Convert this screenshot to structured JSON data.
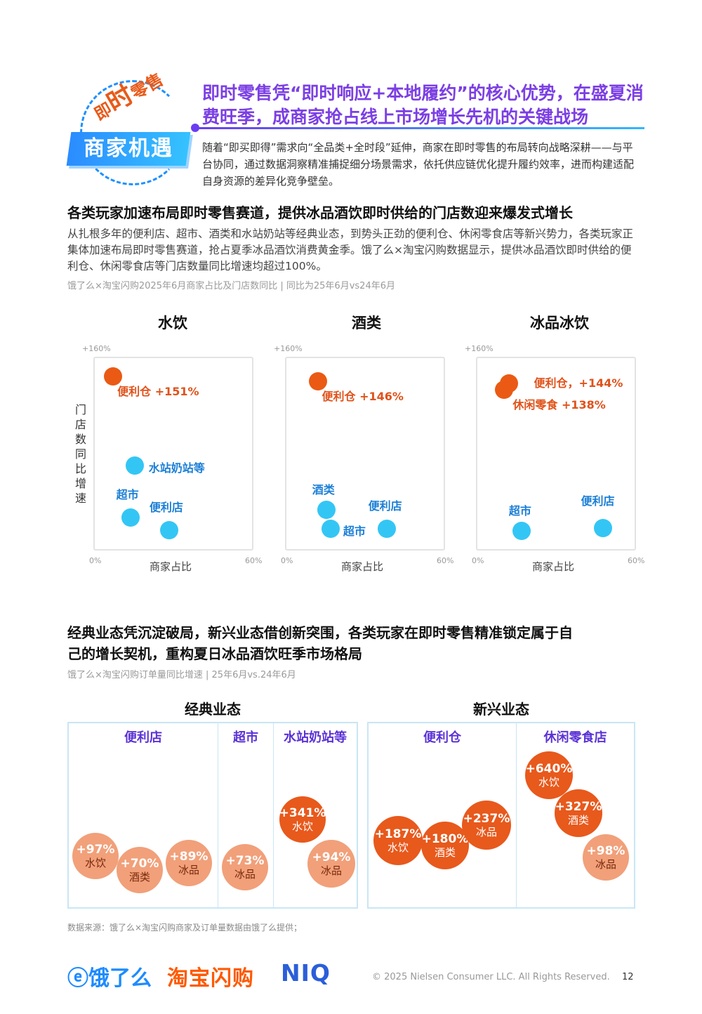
{
  "badge": {
    "top_small1": "即",
    "top_big": "时",
    "top_small2": "零售",
    "tag": "商家机遇"
  },
  "headline": "即时零售凭“即时响应+本地履约”的核心优势，在盛夏消费旺季，成商家抢占线上市场增长先机的关键战场",
  "intro": "随着“即买即得”需求向“全品类+全时段”延伸，商家在即时零售的布局转向战略深耕——与平台协同，通过数据洞察精准捕捉细分场景需求，依托供应链优化提升履约效率，进而构建适配自身资源的差异化竞争壁垒。",
  "section1": {
    "title": "各类玩家加速布局即时零售赛道，提供冰品酒饮即时供给的门店数迎来爆发式增长",
    "body": "从扎根多年的便利店、超市、酒类和水站奶站等经典业态，到势头正劲的便利仓、休闲零食店等新兴势力，各类玩家正集体加速布局即时零售赛道，抢占夏季冰品酒饮消费黄金季。饿了么×淘宝闪购数据显示，提供冰品酒饮即时供给的便利仓、休闲零食店等门店数量同比增速均超过100%。",
    "note": "饿了么×淘宝闪购2025年6月商家占比及门店数同比 | 同比为25年6月vs24年6月"
  },
  "section2": {
    "title_line1": "经典业态凭沉淀破局，新兴业态借创新突围，各类玩家在即时零售精准锁定属于自",
    "title_line2": "己的增长契机，重构夏日冰品酒饮旺季市场格局",
    "note": "饿了么×淘宝闪购订单量同比增速 | 25年6月vs.24年6月",
    "group_classic": "经典业态",
    "group_new": "新兴业态"
  },
  "axis": {
    "ylabel": "门店数同比增速",
    "xlabel": "商家占比",
    "y_max_label": "+160%",
    "x_min_label": "0%",
    "x_max_label": "60%"
  },
  "chart_data": [
    {
      "type": "scatter",
      "title": "水饮",
      "xlabel": "商家占比",
      "ylabel": "门店数同比增速",
      "xlim": [
        0,
        60
      ],
      "ylim": [
        0,
        160
      ],
      "points": [
        {
          "label": "便利仓 +151%",
          "x": 1,
          "y": 151,
          "color": "#ea5a14",
          "group": "orange"
        },
        {
          "label": "水站奶站等",
          "x": 6,
          "y": 67,
          "color": "#33c6f5",
          "group": "blue"
        },
        {
          "label": "超市",
          "x": 5,
          "y": 18,
          "color": "#33c6f5",
          "group": "blue"
        },
        {
          "label": "便利店",
          "x": 14,
          "y": 6,
          "color": "#33c6f5",
          "group": "blue"
        }
      ]
    },
    {
      "type": "scatter",
      "title": "酒类",
      "xlabel": "商家占比",
      "ylabel": "门店数同比增速",
      "xlim": [
        0,
        60
      ],
      "ylim": [
        0,
        160
      ],
      "points": [
        {
          "label": "便利仓 +146%",
          "x": 4,
          "y": 146,
          "color": "#ea5a14",
          "group": "orange"
        },
        {
          "label": "酒类",
          "x": 6,
          "y": 25,
          "color": "#33c6f5",
          "group": "blue"
        },
        {
          "label": "超市",
          "x": 7,
          "y": 7,
          "color": "#33c6f5",
          "group": "blue"
        },
        {
          "label": "便利店",
          "x": 20,
          "y": 7,
          "color": "#33c6f5",
          "group": "blue"
        }
      ]
    },
    {
      "type": "scatter",
      "title": "冰品冰饮",
      "xlabel": "商家占比",
      "ylabel": "门店数同比增速",
      "xlim": [
        0,
        60
      ],
      "ylim": [
        0,
        160
      ],
      "points": [
        {
          "label": "便利仓，+144%",
          "x": 4,
          "y": 144,
          "color": "#ea5a14",
          "group": "orange"
        },
        {
          "label": "休闲零食 +138%",
          "x": 3,
          "y": 138,
          "color": "#ea5a14",
          "group": "orange"
        },
        {
          "label": "超市",
          "x": 7,
          "y": 5,
          "color": "#33c6f5",
          "group": "blue"
        },
        {
          "label": "便利店",
          "x": 26,
          "y": 8,
          "color": "#33c6f5",
          "group": "blue"
        }
      ]
    }
  ],
  "bubbles": {
    "classic": [
      {
        "name": "便利店",
        "items": [
          {
            "value": "+97%",
            "cat": "水饮",
            "tone": "light"
          },
          {
            "value": "+70%",
            "cat": "酒类",
            "tone": "light"
          },
          {
            "value": "+89%",
            "cat": "冰品",
            "tone": "light"
          }
        ]
      },
      {
        "name": "超市",
        "items": [
          {
            "value": "+73%",
            "cat": "冰品",
            "tone": "light"
          }
        ]
      },
      {
        "name": "水站奶站等",
        "items": [
          {
            "value": "+341%",
            "cat": "水饮",
            "tone": "dark"
          },
          {
            "value": "+94%",
            "cat": "冰品",
            "tone": "light"
          }
        ]
      }
    ],
    "new": [
      {
        "name": "便利仓",
        "items": [
          {
            "value": "+187%",
            "cat": "水饮",
            "tone": "dark"
          },
          {
            "value": "+180%",
            "cat": "酒类",
            "tone": "dark"
          },
          {
            "value": "+237%",
            "cat": "冰品",
            "tone": "dark"
          }
        ]
      },
      {
        "name": "休闲零食店",
        "items": [
          {
            "value": "+640%",
            "cat": "水饮",
            "tone": "dark"
          },
          {
            "value": "+327%",
            "cat": "酒类",
            "tone": "dark"
          },
          {
            "value": "+98%",
            "cat": "冰品",
            "tone": "light"
          }
        ]
      }
    ]
  },
  "footer": {
    "source": "数据来源：饿了么×淘宝闪购商家及订单量数据由饿了么提供；",
    "logo_eleme": "ⓔ饿了么",
    "logo_taobao": "淘宝闪购",
    "logo_niq": "NIQ",
    "copyright": "© 2025 Nielsen Consumer LLC. All Rights Reserved.",
    "page": "12"
  }
}
